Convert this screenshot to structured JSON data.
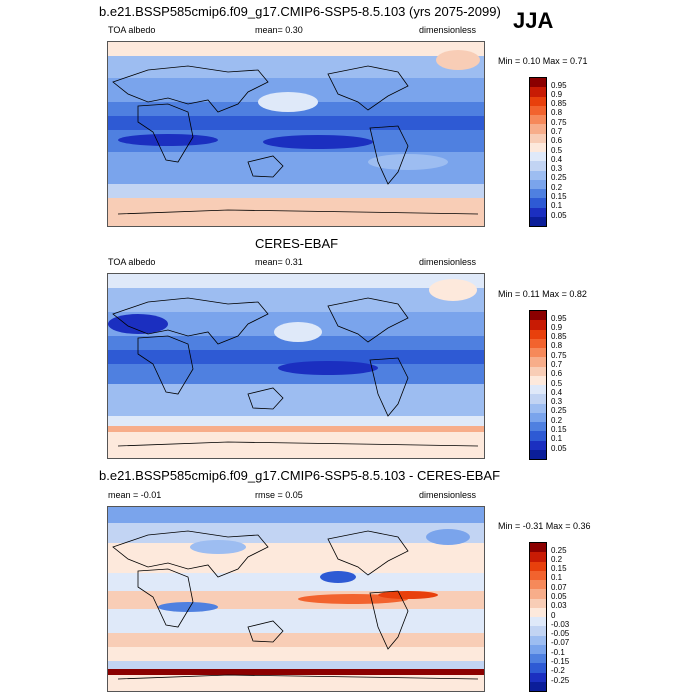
{
  "season": "JJA",
  "panels": [
    {
      "title": "b.e21.BSSP585cmip6.f09_g17.CMIP6-SSP5-8.5.103 (yrs 2075-2099)",
      "left": "TOA albedo",
      "center": "mean=   0.30",
      "right": "dimensionless",
      "minmax": "Min =   0.10 Max =   0.71",
      "colorbar": {
        "labels": [
          "0.95",
          "0.9",
          "0.85",
          "0.8",
          "0.75",
          "0.7",
          "0.6",
          "0.5",
          "0.4",
          "0.3",
          "0.25",
          "0.2",
          "0.15",
          "0.1",
          "0.05"
        ],
        "colors": [
          "#8b0000",
          "#c81b04",
          "#e8400c",
          "#f2632e",
          "#f6895a",
          "#f7ad8a",
          "#f8cdb6",
          "#fde9dc",
          "#dfe9f9",
          "#c2d4f3",
          "#9dbdf1",
          "#7aa4ec",
          "#4f80e0",
          "#2e5ad4",
          "#1b2fc0",
          "#0b1e99"
        ]
      }
    },
    {
      "title": "CERES-EBAF",
      "left": "TOA albedo",
      "center": "mean=   0.31",
      "right": "dimensionless",
      "minmax": "Min =   0.11 Max =   0.82",
      "colorbar": {
        "labels": [
          "0.95",
          "0.9",
          "0.85",
          "0.8",
          "0.75",
          "0.7",
          "0.6",
          "0.5",
          "0.4",
          "0.3",
          "0.25",
          "0.2",
          "0.15",
          "0.1",
          "0.05"
        ],
        "colors": [
          "#8b0000",
          "#c81b04",
          "#e8400c",
          "#f2632e",
          "#f6895a",
          "#f7ad8a",
          "#f8cdb6",
          "#fde9dc",
          "#dfe9f9",
          "#c2d4f3",
          "#9dbdf1",
          "#7aa4ec",
          "#4f80e0",
          "#2e5ad4",
          "#1b2fc0",
          "#0b1e99"
        ]
      }
    },
    {
      "title": "b.e21.BSSP585cmip6.f09_g17.CMIP6-SSP5-8.5.103 - CERES-EBAF",
      "left": "mean =  -0.01",
      "center": "rmse =   0.05",
      "right": "dimensionless",
      "minmax": "Min =  -0.31 Max =   0.36",
      "colorbar": {
        "labels": [
          "0.25",
          "0.2",
          "0.15",
          "0.1",
          "0.07",
          "0.05",
          "0.03",
          "0",
          "-0.03",
          "-0.05",
          "-0.07",
          "-0.1",
          "-0.15",
          "-0.2",
          "-0.25"
        ],
        "colors": [
          "#8b0000",
          "#c81b04",
          "#e8400c",
          "#f2632e",
          "#f6895a",
          "#f7ad8a",
          "#f8cdb6",
          "#fde9dc",
          "#dfe9f9",
          "#c2d4f3",
          "#9dbdf1",
          "#7aa4ec",
          "#4f80e0",
          "#2e5ad4",
          "#1b2fc0",
          "#0b1e99"
        ]
      }
    }
  ]
}
